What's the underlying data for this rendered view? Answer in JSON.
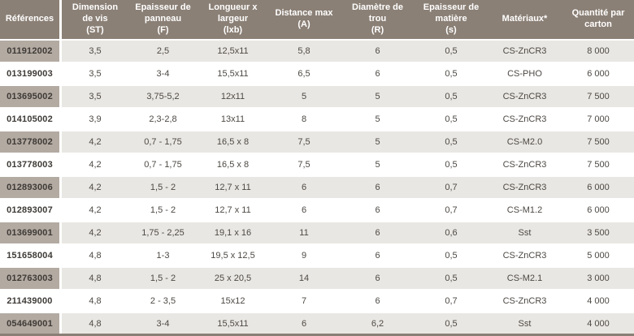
{
  "colors": {
    "header_bg": "#8B8076",
    "header_text": "#FFFFFF",
    "ref_cell_alt_bg": "#B3AAA2",
    "row_alt_bg": "#E9E7E3",
    "row_bg": "#FFFFFF",
    "ref_text": "#3E3A36",
    "cell_text": "#4D4944",
    "bottom_border": "#8B8076",
    "separator": "#FFFFFF"
  },
  "table": {
    "headers": [
      "Références",
      "Dimension\nde vis\n(ST)",
      "Epaisseur de\npanneau\n(F)",
      "Longueur x\nlargeur\n(lxb)",
      "Distance max\n(A)",
      "Diamètre de\ntrou\n(R)",
      "Epaisseur de\nmatière\n(s)",
      "Matériaux*",
      "Quantité par\ncarton"
    ],
    "rows": [
      [
        "011912002",
        "3,5",
        "2,5",
        "12,5x11",
        "5,8",
        "6",
        "0,5",
        "CS-ZnCR3",
        "8 000"
      ],
      [
        "013199003",
        "3,5",
        "3-4",
        "15,5x11",
        "6,5",
        "6",
        "0,5",
        "CS-PHO",
        "6 000"
      ],
      [
        "013695002",
        "3,5",
        "3,75-5,2",
        "12x11",
        "5",
        "5",
        "0,5",
        "CS-ZnCR3",
        "7 500"
      ],
      [
        "014105002",
        "3,9",
        "2,3-2,8",
        "13x11",
        "8",
        "5",
        "0,5",
        "CS-ZnCR3",
        "7 000"
      ],
      [
        "013778002",
        "4,2",
        "0,7 - 1,75",
        "16,5 x 8",
        "7,5",
        "5",
        "0,5",
        "CS-M2.0",
        "7 500"
      ],
      [
        "013778003",
        "4,2",
        "0,7 - 1,75",
        "16,5 x 8",
        "7,5",
        "5",
        "0,5",
        "CS-ZnCR3",
        "7 500"
      ],
      [
        "012893006",
        "4,2",
        "1,5 - 2",
        "12,7 x 11",
        "6",
        "6",
        "0,7",
        "CS-ZnCR3",
        "6 000"
      ],
      [
        "012893007",
        "4,2",
        "1,5 - 2",
        "12,7 x 11",
        "6",
        "6",
        "0,7",
        "CS-M1.2",
        "6 000"
      ],
      [
        "013699001",
        "4,2",
        "1,75 - 2,25",
        "19,1 x 16",
        "11",
        "6",
        "0,6",
        "Sst",
        "3 500"
      ],
      [
        "151658004",
        "4,8",
        "1-3",
        "19,5 x 12,5",
        "9",
        "6",
        "0,5",
        "CS-ZnCR3",
        "5 000"
      ],
      [
        "012763003",
        "4,8",
        "1,5 - 2",
        "25 x 20,5",
        "14",
        "6",
        "0,5",
        "CS-M2.1",
        "3 000"
      ],
      [
        "211439000",
        "4,8",
        "2 - 3,5",
        "15x12",
        "7",
        "6",
        "0,7",
        "CS-ZnCR3",
        "4 000"
      ],
      [
        "054649001",
        "4,8",
        "3-4",
        "15,5x11",
        "6",
        "6,2",
        "0,5",
        "Sst",
        "4 000"
      ]
    ]
  }
}
